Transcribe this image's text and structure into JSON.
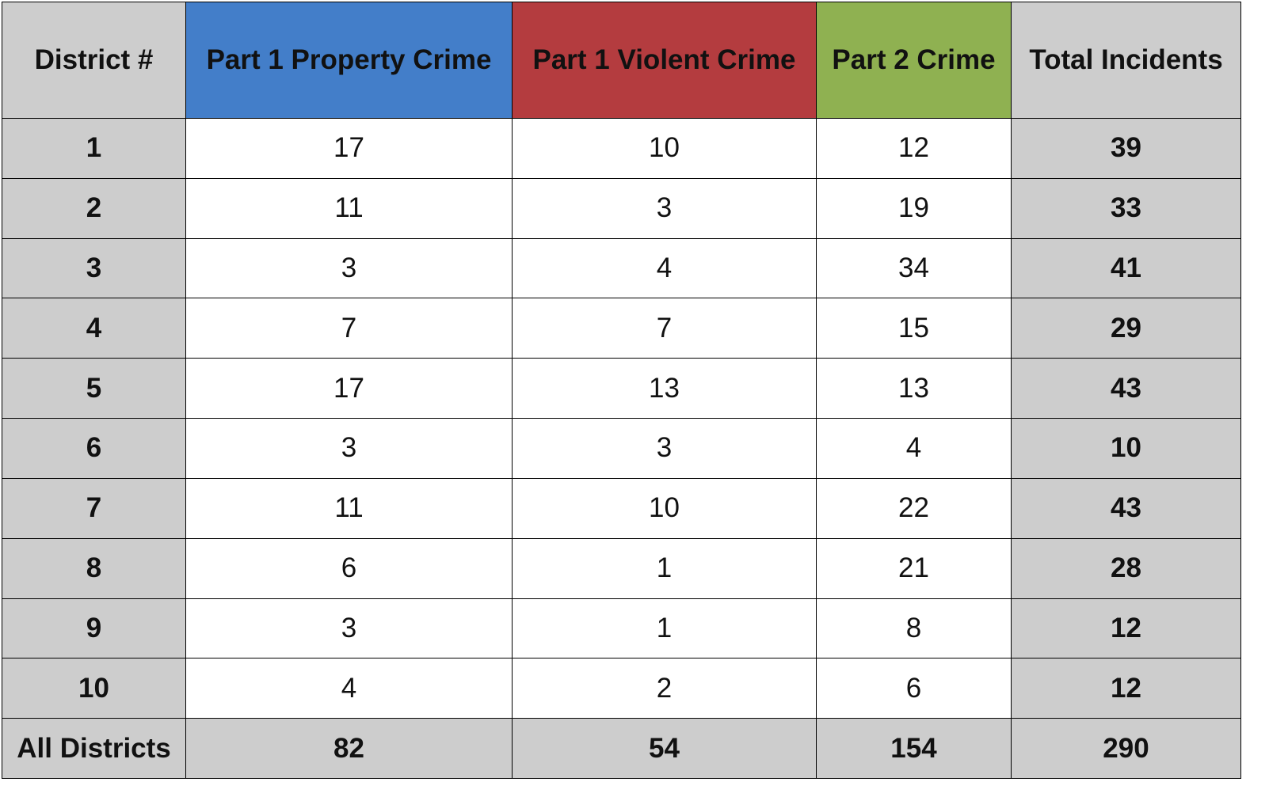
{
  "table": {
    "headers": {
      "district": "District #",
      "property": "Part 1 Property Crime",
      "violent": "Part 1 Violent Crime",
      "part2": "Part 2 Crime",
      "total": "Total Incidents"
    },
    "rows": [
      {
        "district": "1",
        "property": "17",
        "violent": "10",
        "part2": "12",
        "total": "39"
      },
      {
        "district": "2",
        "property": "11",
        "violent": "3",
        "part2": "19",
        "total": "33"
      },
      {
        "district": "3",
        "property": "3",
        "violent": "4",
        "part2": "34",
        "total": "41"
      },
      {
        "district": "4",
        "property": "7",
        "violent": "7",
        "part2": "15",
        "total": "29"
      },
      {
        "district": "5",
        "property": "17",
        "violent": "13",
        "part2": "13",
        "total": "43"
      },
      {
        "district": "6",
        "property": "3",
        "violent": "3",
        "part2": "4",
        "total": "10"
      },
      {
        "district": "7",
        "property": "11",
        "violent": "10",
        "part2": "22",
        "total": "43"
      },
      {
        "district": "8",
        "property": "6",
        "violent": "1",
        "part2": "21",
        "total": "28"
      },
      {
        "district": "9",
        "property": "3",
        "violent": "1",
        "part2": "8",
        "total": "12"
      },
      {
        "district": "10",
        "property": "4",
        "violent": "2",
        "part2": "6",
        "total": "12"
      }
    ],
    "summary": {
      "district": "All Districts",
      "property": "82",
      "violent": "54",
      "part2": "154",
      "total": "290"
    }
  },
  "colors": {
    "property_header": "#437ec9",
    "violent_header": "#b43c3f",
    "part2_header": "#8fb151",
    "grey_cells": "#cdcdcd"
  },
  "chart_data": {
    "type": "table",
    "columns": [
      "District #",
      "Part 1 Property Crime",
      "Part 1 Violent Crime",
      "Part 2 Crime",
      "Total Incidents"
    ],
    "rows": [
      [
        "1",
        17,
        10,
        12,
        39
      ],
      [
        "2",
        11,
        3,
        19,
        33
      ],
      [
        "3",
        3,
        4,
        34,
        41
      ],
      [
        "4",
        7,
        7,
        15,
        29
      ],
      [
        "5",
        17,
        13,
        13,
        43
      ],
      [
        "6",
        3,
        3,
        4,
        10
      ],
      [
        "7",
        11,
        10,
        22,
        43
      ],
      [
        "8",
        6,
        1,
        21,
        28
      ],
      [
        "9",
        3,
        1,
        8,
        12
      ],
      [
        "10",
        4,
        2,
        6,
        12
      ],
      [
        "All Districts",
        82,
        54,
        154,
        290
      ]
    ]
  }
}
